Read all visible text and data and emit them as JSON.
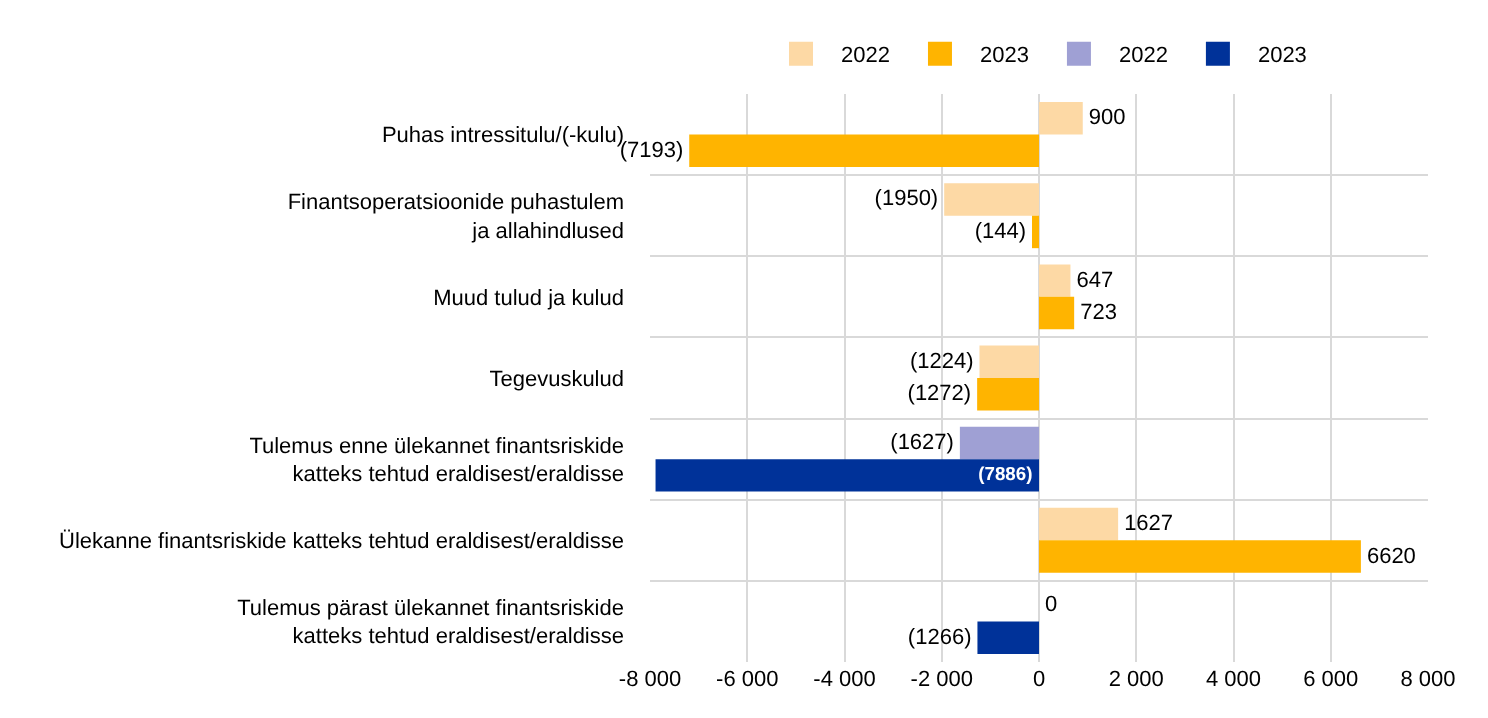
{
  "chart_data": {
    "type": "bar",
    "orientation": "horizontal",
    "categories": [
      "Puhas intressitulu/(-kulu)",
      "Finantsoperatsioonide puhastulem\nja allahindlused",
      "Muud tulud ja kulud",
      "Tegevuskulud",
      "Tulemus enne ülekannet finantsriskide\nkatteks tehtud eraldisest/eraldisse",
      "Ülekanne finantsriskide katteks tehtud eraldisest/eraldisse",
      "Tulemus pärast ülekannet finantsriskide\nkatteks tehtud eraldisest/eraldisse"
    ],
    "series": [
      {
        "name": "2022",
        "color": "#fdd9a5",
        "values": [
          900,
          -1950,
          647,
          -1224,
          null,
          1627,
          null
        ],
        "value_labels": [
          "900",
          "(1950)",
          "647",
          "(1224)",
          null,
          "1627",
          null
        ]
      },
      {
        "name": "2023",
        "color": "#ffb400",
        "values": [
          -7193,
          -144,
          723,
          -1272,
          null,
          6620,
          null
        ],
        "value_labels": [
          "(7193)",
          "(144)",
          "723",
          "(1272)",
          null,
          "6620",
          null
        ]
      },
      {
        "name": "2022",
        "color": "#9fa0d4",
        "values": [
          null,
          null,
          null,
          null,
          -1627,
          null,
          0
        ],
        "value_labels": [
          null,
          null,
          null,
          null,
          "(1627)",
          null,
          "0"
        ]
      },
      {
        "name": "2023",
        "color": "#003299",
        "values": [
          null,
          null,
          null,
          null,
          -7886,
          null,
          -1266
        ],
        "value_labels": [
          null,
          null,
          null,
          null,
          "(7886)",
          null,
          "(1266)"
        ]
      }
    ],
    "xlim": [
      -8000,
      8000
    ],
    "xticks": [
      {
        "value": -8000,
        "label": "-8 000"
      },
      {
        "value": -6000,
        "label": "-6 000"
      },
      {
        "value": -4000,
        "label": "-4 000"
      },
      {
        "value": -2000,
        "label": "-2 000"
      },
      0,
      {
        "value": 2000,
        "label": "2 000"
      },
      {
        "value": 4000,
        "label": "4 000"
      },
      {
        "value": 6000,
        "label": "6 000"
      },
      {
        "value": 8000,
        "label": "8 000"
      }
    ],
    "grid": true,
    "legend": "top"
  }
}
